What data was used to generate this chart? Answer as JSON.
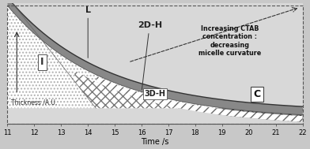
{
  "xlim": [
    11,
    22
  ],
  "ylim": [
    0,
    1
  ],
  "xlabel": "Time /s",
  "ylabel": "Thickness /A.U.",
  "xticks": [
    11,
    12,
    13,
    14,
    15,
    16,
    17,
    18,
    19,
    20,
    21,
    22
  ],
  "fig_bg": "#c8c8c8",
  "plot_bg": "#d8d8d8",
  "label_L": "L",
  "label_2DH": "2D-H",
  "label_3DH": "3D-H",
  "label_I": "I",
  "label_C": "C",
  "annotation": "Increasing CTAB\nconcentration :\ndecreasing\nmicelle curvature",
  "axis_fontsize": 7,
  "tick_fontsize": 6,
  "label_fontsize": 7.5
}
